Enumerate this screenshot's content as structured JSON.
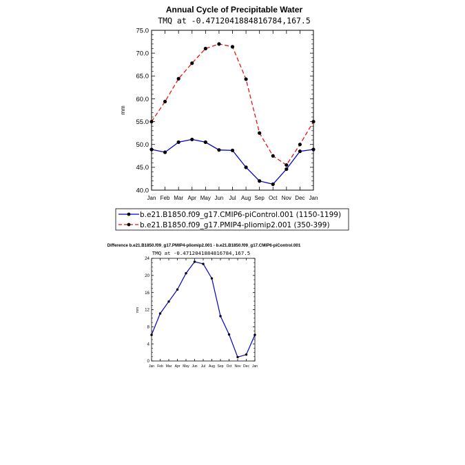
{
  "chart_data": [
    {
      "type": "line",
      "title": "Annual Cycle of Precipitable Water",
      "subtitle": "TMQ  at  -0.4712041884816784,167.5",
      "xlabel": "",
      "ylabel": "mm",
      "categories": [
        "Jan",
        "Feb",
        "Mar",
        "Apr",
        "May",
        "Jun",
        "Jul",
        "Aug",
        "Sep",
        "Oct",
        "Nov",
        "Dec",
        "Jan"
      ],
      "ylim": [
        40,
        75
      ],
      "yticks": [
        40,
        45,
        50,
        55,
        60,
        65,
        70,
        75
      ],
      "ytick_labels": [
        "40.0",
        "45.0",
        "50.0",
        "55.0",
        "60.0",
        "65.0",
        "70.0",
        "75.0"
      ],
      "series": [
        {
          "name": "b.e21.B1850.f09_g17.CMIP6-piControl.001  (1150-1199)",
          "color": "#0000cc",
          "style": "solid",
          "values": [
            48.9,
            48.3,
            50.5,
            51.1,
            50.5,
            48.8,
            48.7,
            45.0,
            42.0,
            41.3,
            44.6,
            48.5,
            48.9
          ]
        },
        {
          "name": "b.e21.B1850.f09_g17.PMIP4-pliomip2.001  (350-399)",
          "color": "#ee1111",
          "style": "dashed",
          "values": [
            55.0,
            59.4,
            64.4,
            67.8,
            71.0,
            72.0,
            71.4,
            64.3,
            52.5,
            47.5,
            45.5,
            50.0,
            55.0
          ]
        }
      ]
    },
    {
      "type": "line",
      "title": "Difference b.e21.B1850.f09_g17.PMIP4-pliomip2.001 - b.e21.B1850.f09_g17.CMIP6-piControl.001",
      "subtitle": "TMQ  at  -0.4712041884816784,167.5",
      "xlabel": "",
      "ylabel": "mm",
      "categories": [
        "Jan",
        "Feb",
        "Mar",
        "Apr",
        "May",
        "Jun",
        "Jul",
        "Aug",
        "Sep",
        "Oct",
        "Nov",
        "Dec",
        "Jan"
      ],
      "ylim": [
        0,
        24
      ],
      "yticks": [
        0,
        4,
        8,
        12,
        16,
        20,
        24
      ],
      "ytick_labels": [
        "0",
        "4",
        "8",
        "12",
        "16",
        "20",
        "24"
      ],
      "series": [
        {
          "name": "difference",
          "color": "#0000cc",
          "style": "solid",
          "values": [
            6.1,
            11.1,
            13.9,
            16.7,
            20.5,
            23.2,
            22.7,
            19.3,
            10.5,
            6.2,
            0.9,
            1.5,
            6.1
          ]
        }
      ]
    }
  ]
}
